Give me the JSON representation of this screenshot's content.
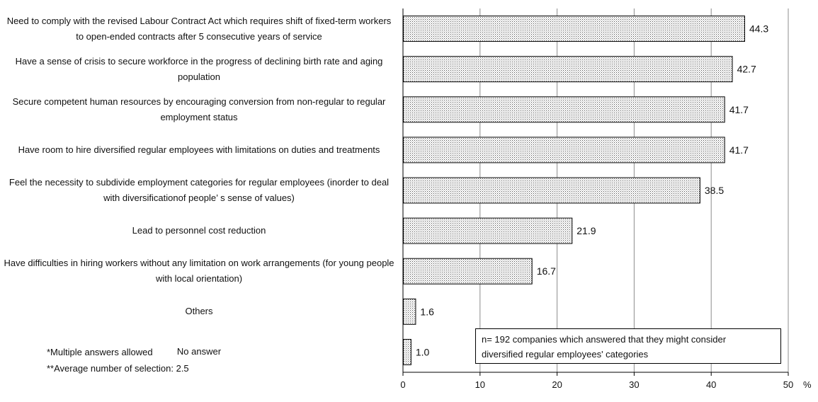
{
  "chart_data": {
    "type": "bar",
    "orientation": "horizontal",
    "categories": [
      "Need to comply with the revised Labour Contract Act which requires shift of fixed-term workers to open-ended contracts after 5 consecutive years of service",
      "Have a sense of crisis to secure workforce in the progress of declining birth rate and aging population",
      "Secure competent human resources by encouraging conversion from non-regular to regular employment status",
      "Have room to hire diversified regular employees with limitations on duties and treatments",
      "Feel the necessity to subdivide employment categories for regular employees (inorder to deal with diversificationof people’ s sense of values)",
      "Lead to personnel cost reduction",
      "Have difficulties in hiring workers without any limitation on work arrangements  (for young people with local orientation)",
      "Others",
      "No answer"
    ],
    "values": [
      44.3,
      42.7,
      41.7,
      41.7,
      38.5,
      21.9,
      16.7,
      1.6,
      1.0
    ],
    "value_labels": [
      "44.3",
      "42.7",
      "41.7",
      "41.7",
      "38.5",
      "21.9",
      "16.7",
      "1.6",
      "1.0"
    ],
    "xlim": [
      0,
      50
    ],
    "x_ticks": [
      "0",
      "10",
      "20",
      "30",
      "40",
      "50"
    ],
    "x_unit": "%",
    "grid": true,
    "bar_fill": "dotted"
  },
  "notes": {
    "multiple": "*Multiple answers allowed",
    "average": "**Average number of selection: 2.5"
  },
  "legend_box": {
    "line1": "n= 192 companies which answered that they might consider",
    "line2": "diversified regular employees' categories"
  }
}
